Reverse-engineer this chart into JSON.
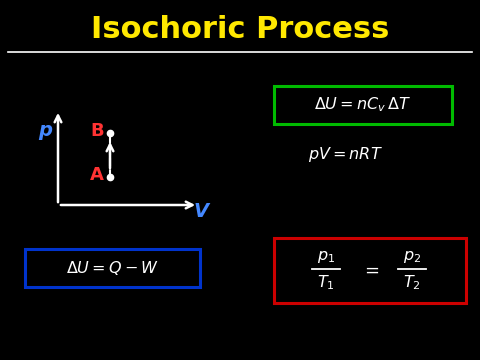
{
  "background_color": "#000000",
  "title": "Isochoric Process",
  "title_color": "#FFE800",
  "title_fontsize": 22,
  "separator_color": "#FFFFFF",
  "pv_label_p": "p",
  "pv_label_v": "V",
  "pv_label_color": "#4488FF",
  "pv_point_A_label": "A",
  "pv_point_B_label": "B",
  "pv_label_AB_color": "#FF3333",
  "eq1_box_color": "#0033CC",
  "eq2_box_color": "#00BB00",
  "eq4_box_color": "#CC0000",
  "white": "#FFFFFF"
}
